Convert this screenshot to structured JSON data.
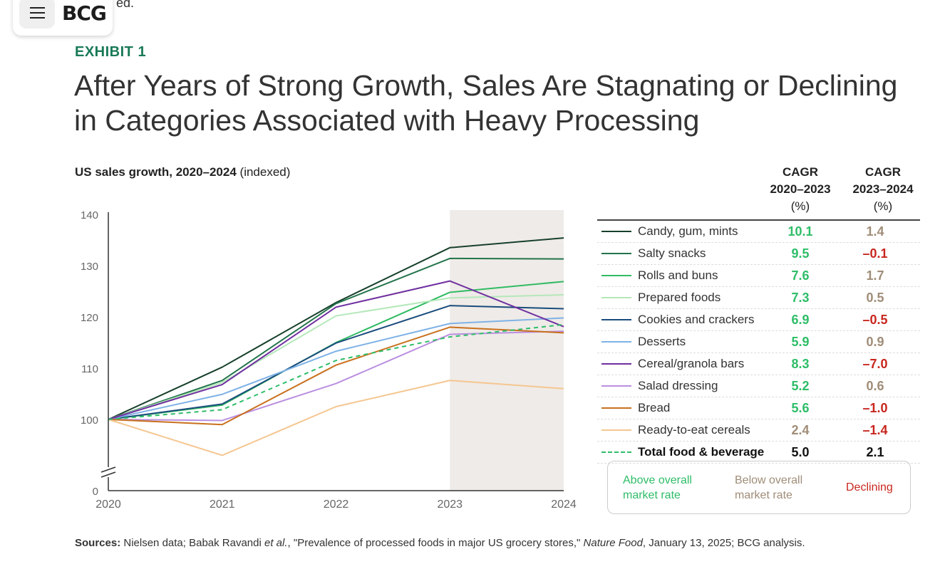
{
  "header": {
    "fragment_text": "ed.",
    "logo_text": "BCG",
    "menu_icon": "hamburger-menu-icon"
  },
  "exhibit_label": "EXHIBIT 1",
  "title": "After Years of Strong Growth, Sales Are Stagnating or Declining in Categories Associated with Heavy Processing",
  "table_headers": {
    "col1": [
      "CAGR",
      "2020–2023",
      "(%)"
    ],
    "col2": [
      "CAGR",
      "2023–2024",
      "(%)"
    ]
  },
  "colors": {
    "above": "#2ebd68",
    "below": "#a08d78",
    "declining": "#c8261e",
    "highlight_band": "#efebe8"
  },
  "rows": [
    {
      "label": "Candy, gum, mints",
      "color": "#17402b",
      "cagr_2020_2023": "10.1",
      "cagr_2023_2024": "1.4",
      "c1": "above",
      "c2": "below"
    },
    {
      "label": "Salty snacks",
      "color": "#22744b",
      "cagr_2020_2023": "9.5",
      "cagr_2023_2024": "–0.1",
      "c1": "above",
      "c2": "declining"
    },
    {
      "label": "Rolls and buns",
      "color": "#31bb63",
      "cagr_2020_2023": "7.6",
      "cagr_2023_2024": "1.7",
      "c1": "above",
      "c2": "below"
    },
    {
      "label": "Prepared foods",
      "color": "#b4e8b9",
      "cagr_2020_2023": "7.3",
      "cagr_2023_2024": "0.5",
      "c1": "above",
      "c2": "below"
    },
    {
      "label": "Cookies and crackers",
      "color": "#1a4c7c",
      "cagr_2020_2023": "6.9",
      "cagr_2023_2024": "–0.5",
      "c1": "above",
      "c2": "declining"
    },
    {
      "label": "Desserts",
      "color": "#7eb2e6",
      "cagr_2020_2023": "5.9",
      "cagr_2023_2024": "0.9",
      "c1": "above",
      "c2": "below"
    },
    {
      "label": "Cereal/granola bars",
      "color": "#6f2fa0",
      "cagr_2020_2023": "8.3",
      "cagr_2023_2024": "–7.0",
      "c1": "above",
      "c2": "declining"
    },
    {
      "label": "Salad dressing",
      "color": "#bb8fe0",
      "cagr_2020_2023": "5.2",
      "cagr_2023_2024": "0.6",
      "c1": "above",
      "c2": "below"
    },
    {
      "label": "Bread",
      "color": "#c9701d",
      "cagr_2020_2023": "5.6",
      "cagr_2023_2024": "–1.0",
      "c1": "above",
      "c2": "declining"
    },
    {
      "label": "Ready-to-eat cereals",
      "color": "#f5c690",
      "cagr_2020_2023": "2.4",
      "cagr_2023_2024": "–1.4",
      "c1": "below",
      "c2": "declining"
    },
    {
      "label": "Total food & beverage",
      "color": "#2ebd68",
      "cagr_2020_2023": "5.0",
      "cagr_2023_2024": "2.1",
      "c1": "neutral",
      "c2": "neutral",
      "dashed": true,
      "bold": true
    }
  ],
  "legend": {
    "above": "Above overall market rate",
    "below": "Below overall market rate",
    "declining": "Declining"
  },
  "sources": {
    "label": "Sources:",
    "text1": " Nielsen data; Babak Ravandi ",
    "italic1": "et al.",
    "text2": ", \"Prevalence of processed foods in major US grocery stores,\" ",
    "italic2": "Nature Food",
    "text3": ", January 13, 2025; BCG analysis."
  },
  "chart_data": {
    "type": "line",
    "title": "US sales growth, 2020–2024",
    "title_suffix": "(indexed)",
    "xlabel": "",
    "ylabel": "",
    "x": [
      2020,
      2021,
      2022,
      2023,
      2024
    ],
    "x_tick_labels": [
      "2020",
      "2021",
      "2022",
      "2023",
      "2024"
    ],
    "y_ticks": [
      100,
      110,
      120,
      130,
      140
    ],
    "y_tick_labels": [
      "100",
      "110",
      "120",
      "130",
      "140"
    ],
    "y_break_label": "0",
    "ylim": [
      93,
      140
    ],
    "highlighted_x_range": [
      2023,
      2024
    ],
    "series": [
      {
        "name": "Candy, gum, mints",
        "values": [
          100,
          110.2,
          122.8,
          133.5,
          135.4
        ]
      },
      {
        "name": "Salty snacks",
        "values": [
          100,
          107.6,
          122.6,
          131.4,
          131.3
        ]
      },
      {
        "name": "Rolls and buns",
        "values": [
          100,
          102.8,
          115.0,
          124.8,
          126.9
        ]
      },
      {
        "name": "Prepared foods",
        "values": [
          100,
          107.2,
          120.2,
          123.7,
          124.3
        ]
      },
      {
        "name": "Cookies and crackers",
        "values": [
          100,
          103.0,
          114.9,
          122.2,
          121.6
        ]
      },
      {
        "name": "Desserts",
        "values": [
          100,
          104.9,
          113.3,
          118.7,
          119.8
        ]
      },
      {
        "name": "Cereal/granola bars",
        "values": [
          100,
          106.8,
          121.9,
          127.0,
          118.1
        ]
      },
      {
        "name": "Salad dressing",
        "values": [
          100,
          99.8,
          107.0,
          116.6,
          117.2
        ]
      },
      {
        "name": "Bread",
        "values": [
          100,
          99.0,
          110.6,
          118.0,
          116.9
        ]
      },
      {
        "name": "Ready-to-eat cereals",
        "values": [
          100,
          93.0,
          102.5,
          107.6,
          106.0
        ]
      },
      {
        "name": "Total food & beverage",
        "values": [
          100,
          101.9,
          111.5,
          116.1,
          118.5
        ]
      }
    ]
  }
}
